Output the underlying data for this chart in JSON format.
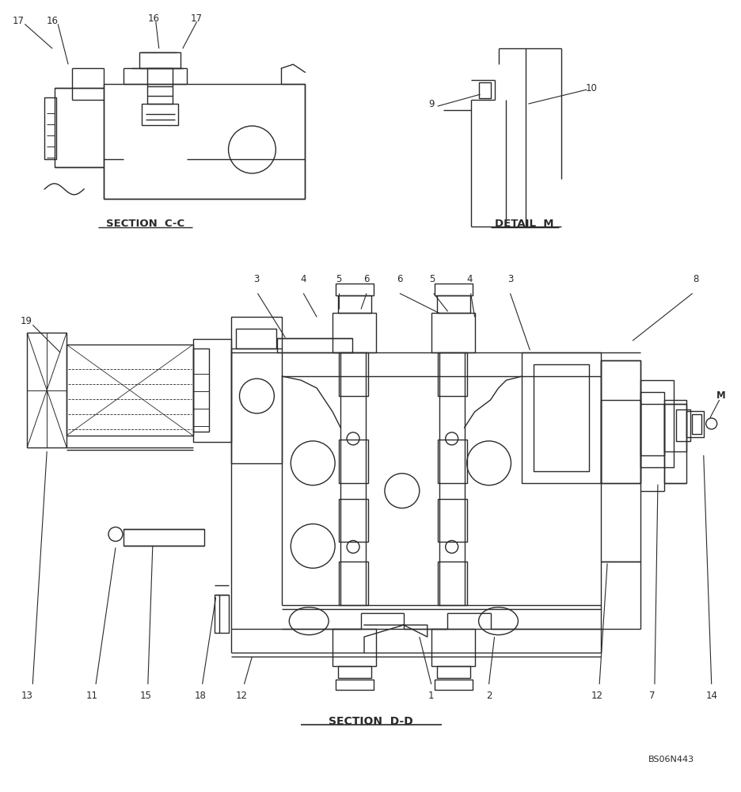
{
  "bg_color": "#ffffff",
  "line_color": "#2a2a2a",
  "lw": 1.0,
  "fig_width": 9.36,
  "fig_height": 10.0,
  "section_cc_label": "SECTION  C-C",
  "detail_m_label": "DETAIL  M",
  "section_dd_label": "SECTION  D-D",
  "ref_label": "BS06N443"
}
